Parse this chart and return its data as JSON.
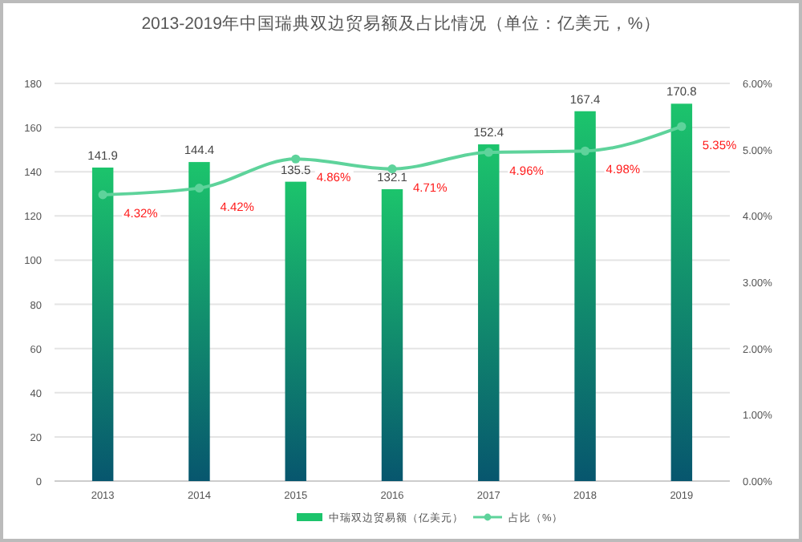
{
  "chart_data": {
    "type": "bar",
    "title": "2013-2019年中国瑞典双边贸易额及占比情况（单位：亿美元，%）",
    "categories": [
      "2013",
      "2014",
      "2015",
      "2016",
      "2017",
      "2018",
      "2019"
    ],
    "series": [
      {
        "name": "中瑞双边贸易额（亿美元）",
        "color": "#1cc46c",
        "values": [
          141.9,
          144.4,
          135.5,
          132.1,
          152.4,
          167.4,
          170.8
        ],
        "value_labels": [
          "141.9",
          "144.4",
          "135.5",
          "132.1",
          "152.4",
          "167.4",
          "170.8"
        ]
      },
      {
        "name": "占比（%）",
        "type": "line",
        "axis": "y2",
        "color": "#5ed39b",
        "values": [
          4.32,
          4.42,
          4.86,
          4.71,
          4.96,
          4.98,
          5.35
        ],
        "value_labels": [
          "4.32%",
          "4.42%",
          "4.86%",
          "4.71%",
          "4.96%",
          "4.98%",
          "5.35%"
        ]
      }
    ],
    "ylim": [
      0,
      180
    ],
    "yticks": [
      0,
      20,
      40,
      60,
      80,
      100,
      120,
      140,
      160,
      180
    ],
    "y2lim": [
      0,
      6
    ],
    "y2ticks": [
      {
        "value": 0,
        "label": "0.00%"
      },
      {
        "value": 1,
        "label": "1.00%"
      },
      {
        "value": 2,
        "label": "2.00%"
      },
      {
        "value": 3,
        "label": "3.00%"
      },
      {
        "value": 4,
        "label": "4.00%"
      },
      {
        "value": 5,
        "label": "5.00%"
      },
      {
        "value": 6,
        "label": "6.00%"
      }
    ],
    "grid": "y",
    "legend": "bottom",
    "marker": "circle",
    "line_style": "solid"
  }
}
